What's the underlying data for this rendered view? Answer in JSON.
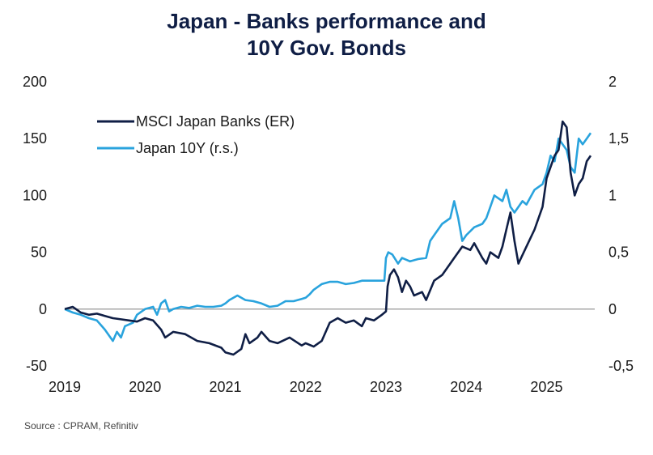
{
  "chart_data": {
    "type": "line",
    "title": [
      "Japan - Banks performance and",
      "10Y Gov. Bonds"
    ],
    "source": "Source : CPRAM, Refinitiv",
    "x_ticks": [
      "2019",
      "2020",
      "2021",
      "2022",
      "2023",
      "2024",
      "2025"
    ],
    "x_range": [
      2019.0,
      2025.6
    ],
    "y_left": {
      "min": -50,
      "max": 200,
      "ticks": [
        "200",
        "150",
        "100",
        "50",
        "0",
        "-50"
      ],
      "tick_values": [
        200,
        150,
        100,
        50,
        0,
        -50
      ]
    },
    "y_right": {
      "min": -0.5,
      "max": 2,
      "ticks": [
        "2",
        "1,5",
        "1",
        "0,5",
        "0",
        "-0,5"
      ],
      "tick_values": [
        2,
        1.5,
        1,
        0.5,
        0,
        -0.5
      ]
    },
    "zero_line": true,
    "grid": false,
    "legend_position": "top-left",
    "series": [
      {
        "name": "MSCI Japan Banks (ER)",
        "axis": "left",
        "color": "#0f1e45",
        "points": [
          [
            2019.0,
            0
          ],
          [
            2019.1,
            2
          ],
          [
            2019.2,
            -3
          ],
          [
            2019.3,
            -5
          ],
          [
            2019.4,
            -4
          ],
          [
            2019.5,
            -6
          ],
          [
            2019.6,
            -8
          ],
          [
            2019.7,
            -9
          ],
          [
            2019.8,
            -10
          ],
          [
            2019.9,
            -11
          ],
          [
            2020.0,
            -8
          ],
          [
            2020.1,
            -10
          ],
          [
            2020.2,
            -18
          ],
          [
            2020.25,
            -25
          ],
          [
            2020.35,
            -20
          ],
          [
            2020.5,
            -22
          ],
          [
            2020.65,
            -28
          ],
          [
            2020.8,
            -30
          ],
          [
            2020.95,
            -34
          ],
          [
            2021.0,
            -38
          ],
          [
            2021.1,
            -40
          ],
          [
            2021.2,
            -35
          ],
          [
            2021.25,
            -22
          ],
          [
            2021.3,
            -30
          ],
          [
            2021.4,
            -25
          ],
          [
            2021.45,
            -20
          ],
          [
            2021.55,
            -28
          ],
          [
            2021.65,
            -30
          ],
          [
            2021.8,
            -25
          ],
          [
            2021.95,
            -32
          ],
          [
            2022.0,
            -30
          ],
          [
            2022.1,
            -33
          ],
          [
            2022.2,
            -28
          ],
          [
            2022.3,
            -12
          ],
          [
            2022.4,
            -8
          ],
          [
            2022.5,
            -12
          ],
          [
            2022.6,
            -10
          ],
          [
            2022.7,
            -15
          ],
          [
            2022.75,
            -8
          ],
          [
            2022.85,
            -10
          ],
          [
            2022.95,
            -5
          ],
          [
            2023.0,
            -2
          ],
          [
            2023.02,
            20
          ],
          [
            2023.05,
            30
          ],
          [
            2023.1,
            35
          ],
          [
            2023.15,
            28
          ],
          [
            2023.2,
            15
          ],
          [
            2023.25,
            25
          ],
          [
            2023.3,
            20
          ],
          [
            2023.35,
            12
          ],
          [
            2023.45,
            15
          ],
          [
            2023.5,
            8
          ],
          [
            2023.6,
            25
          ],
          [
            2023.7,
            30
          ],
          [
            2023.8,
            40
          ],
          [
            2023.85,
            45
          ],
          [
            2023.95,
            55
          ],
          [
            2024.05,
            52
          ],
          [
            2024.1,
            58
          ],
          [
            2024.2,
            45
          ],
          [
            2024.25,
            40
          ],
          [
            2024.3,
            50
          ],
          [
            2024.4,
            45
          ],
          [
            2024.45,
            55
          ],
          [
            2024.5,
            70
          ],
          [
            2024.55,
            85
          ],
          [
            2024.6,
            60
          ],
          [
            2024.65,
            40
          ],
          [
            2024.75,
            55
          ],
          [
            2024.85,
            70
          ],
          [
            2024.95,
            90
          ],
          [
            2025.0,
            115
          ],
          [
            2025.05,
            125
          ],
          [
            2025.1,
            135
          ],
          [
            2025.15,
            140
          ],
          [
            2025.2,
            165
          ],
          [
            2025.25,
            160
          ],
          [
            2025.3,
            120
          ],
          [
            2025.35,
            100
          ],
          [
            2025.4,
            110
          ],
          [
            2025.45,
            115
          ],
          [
            2025.5,
            130
          ],
          [
            2025.55,
            135
          ]
        ]
      },
      {
        "name": "Japan 10Y (r.s.)",
        "axis": "right",
        "color": "#29a3dd",
        "points": [
          [
            2019.0,
            0.0
          ],
          [
            2019.1,
            -0.03
          ],
          [
            2019.2,
            -0.05
          ],
          [
            2019.3,
            -0.08
          ],
          [
            2019.4,
            -0.1
          ],
          [
            2019.5,
            -0.18
          ],
          [
            2019.6,
            -0.28
          ],
          [
            2019.65,
            -0.2
          ],
          [
            2019.7,
            -0.25
          ],
          [
            2019.75,
            -0.15
          ],
          [
            2019.85,
            -0.12
          ],
          [
            2019.9,
            -0.05
          ],
          [
            2020.0,
            0.0
          ],
          [
            2020.1,
            0.02
          ],
          [
            2020.15,
            -0.05
          ],
          [
            2020.2,
            0.05
          ],
          [
            2020.25,
            0.08
          ],
          [
            2020.3,
            -0.02
          ],
          [
            2020.35,
            0.0
          ],
          [
            2020.45,
            0.02
          ],
          [
            2020.55,
            0.01
          ],
          [
            2020.65,
            0.03
          ],
          [
            2020.75,
            0.02
          ],
          [
            2020.85,
            0.02
          ],
          [
            2020.95,
            0.03
          ],
          [
            2021.0,
            0.05
          ],
          [
            2021.05,
            0.08
          ],
          [
            2021.15,
            0.12
          ],
          [
            2021.25,
            0.08
          ],
          [
            2021.35,
            0.07
          ],
          [
            2021.45,
            0.05
          ],
          [
            2021.55,
            0.02
          ],
          [
            2021.65,
            0.03
          ],
          [
            2021.75,
            0.07
          ],
          [
            2021.85,
            0.07
          ],
          [
            2021.95,
            0.09
          ],
          [
            2022.0,
            0.1
          ],
          [
            2022.05,
            0.13
          ],
          [
            2022.1,
            0.17
          ],
          [
            2022.2,
            0.22
          ],
          [
            2022.3,
            0.24
          ],
          [
            2022.4,
            0.24
          ],
          [
            2022.5,
            0.22
          ],
          [
            2022.6,
            0.23
          ],
          [
            2022.7,
            0.25
          ],
          [
            2022.8,
            0.25
          ],
          [
            2022.9,
            0.25
          ],
          [
            2022.98,
            0.25
          ],
          [
            2023.0,
            0.45
          ],
          [
            2023.03,
            0.5
          ],
          [
            2023.08,
            0.48
          ],
          [
            2023.15,
            0.4
          ],
          [
            2023.2,
            0.45
          ],
          [
            2023.3,
            0.42
          ],
          [
            2023.4,
            0.44
          ],
          [
            2023.5,
            0.45
          ],
          [
            2023.55,
            0.6
          ],
          [
            2023.6,
            0.65
          ],
          [
            2023.7,
            0.75
          ],
          [
            2023.8,
            0.8
          ],
          [
            2023.85,
            0.95
          ],
          [
            2023.9,
            0.8
          ],
          [
            2023.95,
            0.6
          ],
          [
            2024.0,
            0.65
          ],
          [
            2024.1,
            0.72
          ],
          [
            2024.2,
            0.75
          ],
          [
            2024.25,
            0.8
          ],
          [
            2024.3,
            0.9
          ],
          [
            2024.35,
            1.0
          ],
          [
            2024.45,
            0.95
          ],
          [
            2024.5,
            1.05
          ],
          [
            2024.55,
            0.9
          ],
          [
            2024.6,
            0.85
          ],
          [
            2024.7,
            0.95
          ],
          [
            2024.75,
            0.92
          ],
          [
            2024.85,
            1.05
          ],
          [
            2024.95,
            1.1
          ],
          [
            2025.0,
            1.2
          ],
          [
            2025.05,
            1.35
          ],
          [
            2025.1,
            1.3
          ],
          [
            2025.15,
            1.5
          ],
          [
            2025.2,
            1.45
          ],
          [
            2025.25,
            1.4
          ],
          [
            2025.3,
            1.25
          ],
          [
            2025.35,
            1.2
          ],
          [
            2025.4,
            1.5
          ],
          [
            2025.45,
            1.45
          ],
          [
            2025.5,
            1.5
          ],
          [
            2025.55,
            1.55
          ]
        ]
      }
    ]
  }
}
